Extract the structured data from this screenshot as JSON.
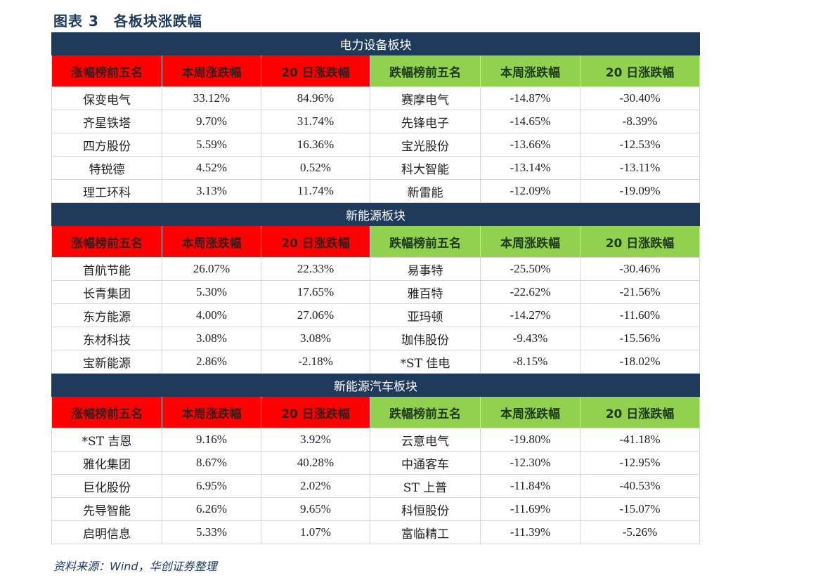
{
  "title": "图表 3　各板块涨跌幅",
  "source": "资料来源：Wind，华创证券整理",
  "headers": {
    "up_rank": "涨幅榜前五名",
    "week": "本周涨跌幅",
    "d20": "20 日涨跌幅",
    "down_rank": "跌幅榜前五名"
  },
  "sections": [
    {
      "title": "电力设备板块",
      "rows": [
        {
          "up_name": "保变电气",
          "up_week": "33.12%",
          "up_20d": "84.96%",
          "dn_name": "赛摩电气",
          "dn_week": "-14.87%",
          "dn_20d": "-30.40%"
        },
        {
          "up_name": "齐星铁塔",
          "up_week": "9.70%",
          "up_20d": "31.74%",
          "dn_name": "先锋电子",
          "dn_week": "-14.65%",
          "dn_20d": "-8.39%"
        },
        {
          "up_name": "四方股份",
          "up_week": "5.59%",
          "up_20d": "16.36%",
          "dn_name": "宝光股份",
          "dn_week": "-13.66%",
          "dn_20d": "-12.53%"
        },
        {
          "up_name": "特锐德",
          "up_week": "4.52%",
          "up_20d": "0.52%",
          "dn_name": "科大智能",
          "dn_week": "-13.14%",
          "dn_20d": "-13.11%"
        },
        {
          "up_name": "理工环科",
          "up_week": "3.13%",
          "up_20d": "11.74%",
          "dn_name": "新雷能",
          "dn_week": "-12.09%",
          "dn_20d": "-19.09%"
        }
      ]
    },
    {
      "title": "新能源板块",
      "rows": [
        {
          "up_name": "首航节能",
          "up_week": "26.07%",
          "up_20d": "22.33%",
          "dn_name": "易事特",
          "dn_week": "-25.50%",
          "dn_20d": "-30.46%"
        },
        {
          "up_name": "长青集团",
          "up_week": "5.30%",
          "up_20d": "17.65%",
          "dn_name": "雅百特",
          "dn_week": "-22.62%",
          "dn_20d": "-21.56%"
        },
        {
          "up_name": "东方能源",
          "up_week": "4.00%",
          "up_20d": "27.06%",
          "dn_name": "亚玛顿",
          "dn_week": "-14.27%",
          "dn_20d": "-11.60%"
        },
        {
          "up_name": "东材科技",
          "up_week": "3.08%",
          "up_20d": "3.08%",
          "dn_name": "珈伟股份",
          "dn_week": "-9.43%",
          "dn_20d": "-15.56%"
        },
        {
          "up_name": "宝新能源",
          "up_week": "2.86%",
          "up_20d": "-2.18%",
          "dn_name": "*ST 佳电",
          "dn_week": "-8.15%",
          "dn_20d": "-18.02%"
        }
      ]
    },
    {
      "title": "新能源汽车板块",
      "rows": [
        {
          "up_name": "*ST 吉恩",
          "up_week": "9.16%",
          "up_20d": "3.92%",
          "dn_name": "云意电气",
          "dn_week": "-19.80%",
          "dn_20d": "-41.18%"
        },
        {
          "up_name": "雅化集团",
          "up_week": "8.67%",
          "up_20d": "40.28%",
          "dn_name": "中通客车",
          "dn_week": "-12.30%",
          "dn_20d": "-12.95%"
        },
        {
          "up_name": "巨化股份",
          "up_week": "6.95%",
          "up_20d": "2.02%",
          "dn_name": "ST 上普",
          "dn_week": "-11.84%",
          "dn_20d": "-40.53%"
        },
        {
          "up_name": "先导智能",
          "up_week": "6.26%",
          "up_20d": "9.65%",
          "dn_name": "科恒股份",
          "dn_week": "-11.69%",
          "dn_20d": "-15.07%"
        },
        {
          "up_name": "启明信息",
          "up_week": "5.33%",
          "up_20d": "1.07%",
          "dn_name": "富临精工",
          "dn_week": "-11.39%",
          "dn_20d": "-5.26%"
        }
      ]
    }
  ]
}
